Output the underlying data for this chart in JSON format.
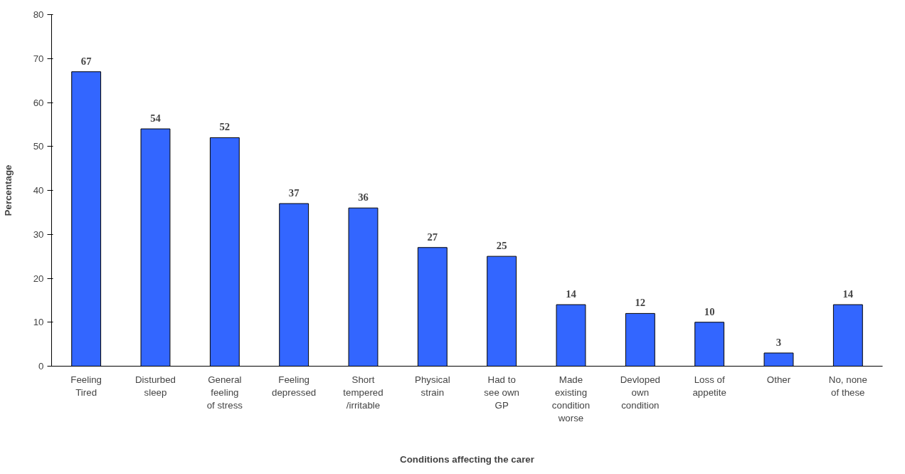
{
  "chart_data": {
    "type": "bar",
    "xlabel": "Conditions affecting the carer",
    "ylabel": "Percentage",
    "categories": [
      "Feeling Tired",
      "Disturbed sleep",
      "General feeling of stress",
      "Feeling depressed",
      "Short tempered /irritable",
      "Physical strain",
      "Had to see own GP",
      "Made existing condition worse",
      "Devloped own condition",
      "Loss of appetite",
      "Other",
      "No, none of these"
    ],
    "values": [
      67,
      54,
      52,
      37,
      36,
      27,
      25,
      14,
      12,
      10,
      3,
      14
    ],
    "color": "#3366ff",
    "ylim": [
      0,
      80
    ],
    "yticks": [
      0,
      10,
      20,
      30,
      40,
      50,
      60,
      70,
      80
    ],
    "grid": false,
    "data_labels": true
  }
}
